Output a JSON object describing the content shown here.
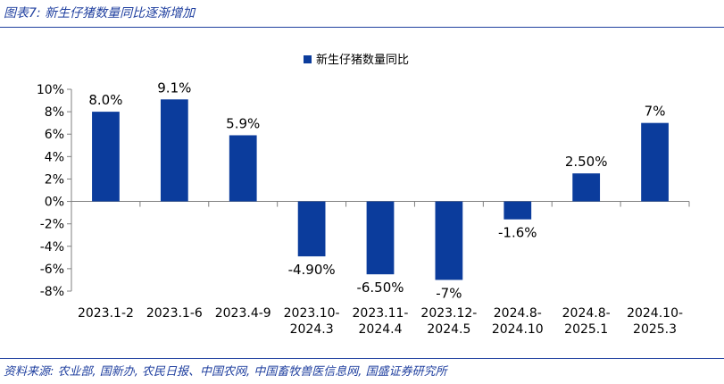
{
  "figure": {
    "title": "图表7: 新生仔猪数量同比逐渐增加",
    "source": "资料来源: 农业部, 国新办, 农民日报、中国农网, 中国畜牧兽医信息网, 国盛证券研究所"
  },
  "chart_data": {
    "type": "bar",
    "categories": [
      [
        "2023.1-2"
      ],
      [
        "2023.1-6"
      ],
      [
        "2023.4-9"
      ],
      [
        "2023.10-",
        "2024.3"
      ],
      [
        "2023.11-",
        "2024.4"
      ],
      [
        "2023.12-",
        "2024.5"
      ],
      [
        "2024.8-",
        "2024.10"
      ],
      [
        "2024.8-",
        "2025.1"
      ],
      [
        "2024.10-",
        "2025.3"
      ]
    ],
    "series": [
      {
        "name": "新生仔猪数量同比",
        "values": [
          8.0,
          9.1,
          5.9,
          -4.9,
          -6.5,
          -7.0,
          -1.6,
          2.5,
          7.0
        ],
        "labels": [
          "8.0%",
          "9.1%",
          "5.9%",
          "-4.90%",
          "-6.50%",
          "-7%",
          "-1.6%",
          "2.50%",
          "7%"
        ],
        "color": "#0b3c9c"
      }
    ],
    "ylim": [
      -8,
      10
    ],
    "yticks": [
      10,
      8,
      6,
      4,
      2,
      0,
      -2,
      -4,
      -6,
      -8
    ],
    "ytick_labels": [
      "10%",
      "8%",
      "6%",
      "4%",
      "2%",
      "0%",
      "-2%",
      "-4%",
      "-6%",
      "-8%"
    ],
    "legend_position": "top-center",
    "grid": false
  }
}
